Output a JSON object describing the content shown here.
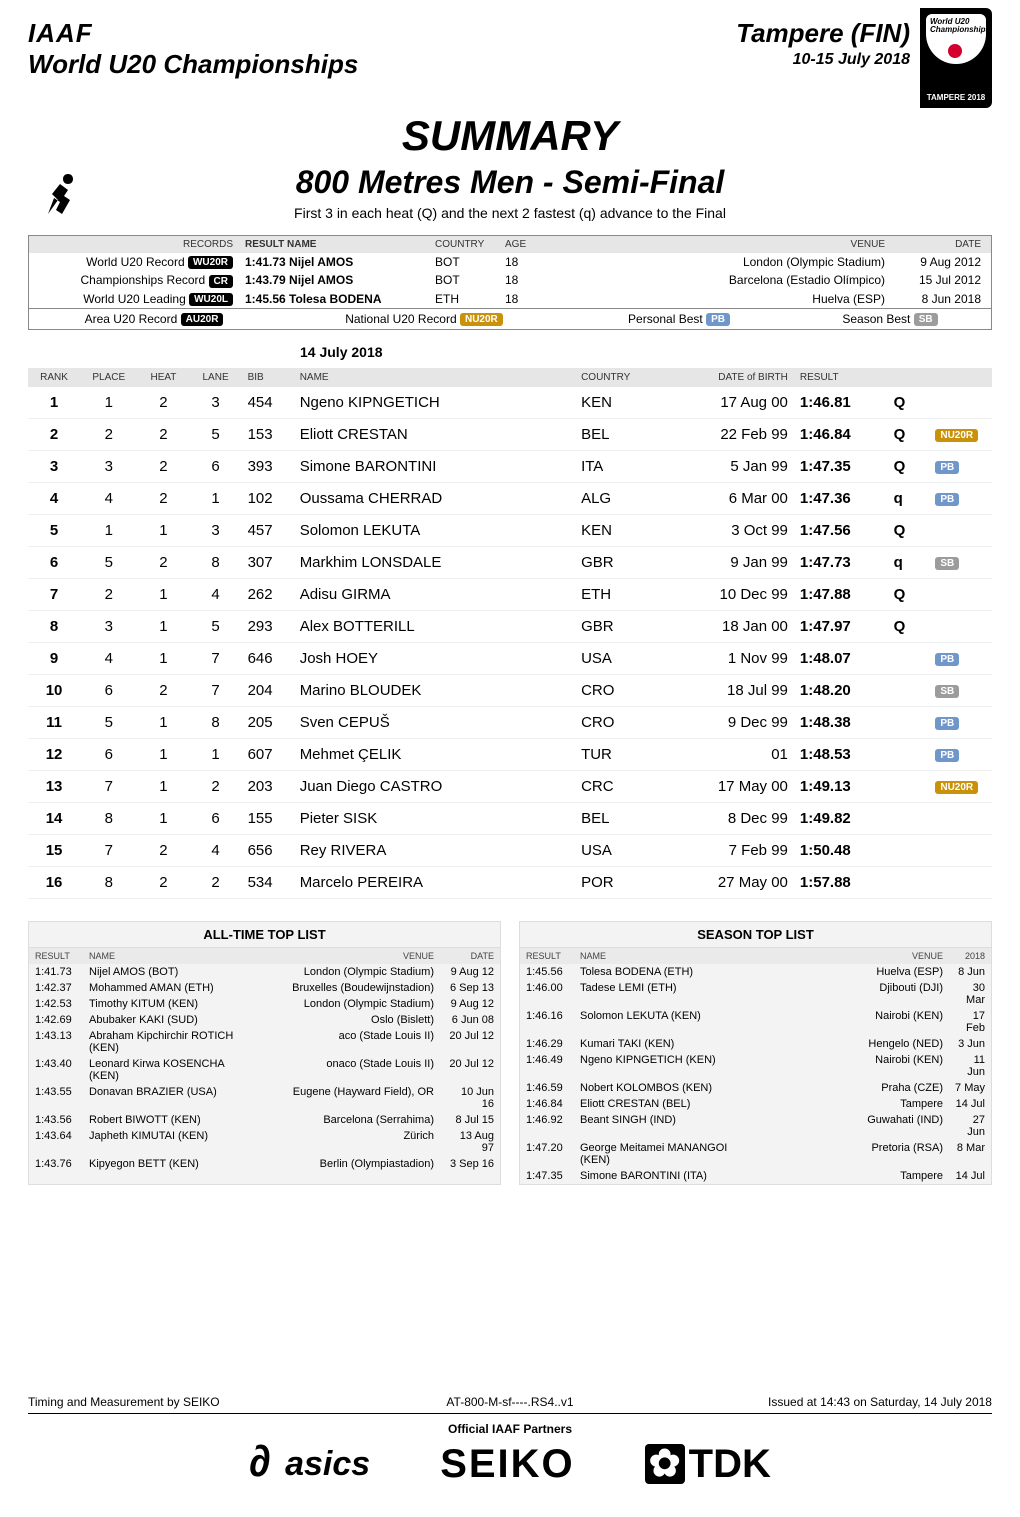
{
  "colors": {
    "badge_rec": "#000000",
    "badge_nu": "#c9920a",
    "badge_pb": "#7097c9",
    "badge_sb": "#9c9c9c",
    "header_grey": "#e6e6e6",
    "list_bg": "#f3f3f3"
  },
  "header": {
    "federation": "IAAF",
    "championship": "World U20 Championships",
    "location": "Tampere (FIN)",
    "dates": "10-15 July 2018",
    "logo_small1": "World U20",
    "logo_small2": "Championships",
    "logo_footer": "TAMPERE 2018"
  },
  "title": {
    "summary": "SUMMARY",
    "event": "800 Metres Men - Semi-Final",
    "sub": "First 3 in each heat (Q) and the next 2 fastest (q) advance to the Final"
  },
  "records_hdr": {
    "c1": "RECORDS",
    "c2": "RESULT  NAME",
    "c3": "COUNTRY",
    "c4": "AGE",
    "c5": "VENUE",
    "c6": "DATE"
  },
  "records": [
    {
      "label": "World U20 Record",
      "badge": "WU20R",
      "result": "1:41.73  Nijel AMOS",
      "country": "BOT",
      "age": "18",
      "venue": "London (Olympic Stadium)",
      "date": "9 Aug 2012"
    },
    {
      "label": "Championships Record",
      "badge": "CR",
      "result": "1:43.79  Nijel AMOS",
      "country": "BOT",
      "age": "18",
      "venue": "Barcelona (Estadio Olímpico)",
      "date": "15 Jul 2012"
    },
    {
      "label": "World U20 Leading",
      "badge": "WU20L",
      "result": "1:45.56  Tolesa BODENA",
      "country": "ETH",
      "age": "18",
      "venue": "Huelva (ESP)",
      "date": "8 Jun 2018"
    }
  ],
  "records_foot": {
    "c1": "Area U20 Record",
    "c1b": "AU20R",
    "c2": "National U20 Record",
    "c2b": "NU20R",
    "c3": "Personal Best",
    "c3b": "PB",
    "c4": "Season Best",
    "c4b": "SB"
  },
  "date_label": "14 July  2018",
  "results_hdr": {
    "rank": "RANK",
    "place": "PLACE",
    "heat": "HEAT",
    "lane": "LANE",
    "bib": "BIB",
    "name": "NAME",
    "country": "COUNTRY",
    "dob": "DATE of BIRTH",
    "result": "RESULT"
  },
  "results": [
    {
      "rank": "1",
      "place": "1",
      "heat": "2",
      "lane": "3",
      "bib": "454",
      "name": "Ngeno  KIPNGETICH",
      "ctry": "KEN",
      "dob": "17 Aug 00",
      "res": "1:46.81",
      "q": "Q",
      "badge": ""
    },
    {
      "rank": "2",
      "place": "2",
      "heat": "2",
      "lane": "5",
      "bib": "153",
      "name": "Eliott  CRESTAN",
      "ctry": "BEL",
      "dob": "22 Feb 99",
      "res": "1:46.84",
      "q": "Q",
      "badge": "NU20R"
    },
    {
      "rank": "3",
      "place": "3",
      "heat": "2",
      "lane": "6",
      "bib": "393",
      "name": "Simone  BARONTINI",
      "ctry": "ITA",
      "dob": "5 Jan 99",
      "res": "1:47.35",
      "q": "Q",
      "badge": "PB"
    },
    {
      "rank": "4",
      "place": "4",
      "heat": "2",
      "lane": "1",
      "bib": "102",
      "name": "Oussama  CHERRAD",
      "ctry": "ALG",
      "dob": "6 Mar 00",
      "res": "1:47.36",
      "q": "q",
      "badge": "PB"
    },
    {
      "rank": "5",
      "place": "1",
      "heat": "1",
      "lane": "3",
      "bib": "457",
      "name": "Solomon  LEKUTA",
      "ctry": "KEN",
      "dob": "3 Oct 99",
      "res": "1:47.56",
      "q": "Q",
      "badge": ""
    },
    {
      "rank": "6",
      "place": "5",
      "heat": "2",
      "lane": "8",
      "bib": "307",
      "name": "Markhim  LONSDALE",
      "ctry": "GBR",
      "dob": "9 Jan 99",
      "res": "1:47.73",
      "q": "q",
      "badge": "SB"
    },
    {
      "rank": "7",
      "place": "2",
      "heat": "1",
      "lane": "4",
      "bib": "262",
      "name": "Adisu  GIRMA",
      "ctry": "ETH",
      "dob": "10 Dec 99",
      "res": "1:47.88",
      "q": "Q",
      "badge": ""
    },
    {
      "rank": "8",
      "place": "3",
      "heat": "1",
      "lane": "5",
      "bib": "293",
      "name": "Alex  BOTTERILL",
      "ctry": "GBR",
      "dob": "18 Jan 00",
      "res": "1:47.97",
      "q": "Q",
      "badge": ""
    },
    {
      "rank": "9",
      "place": "4",
      "heat": "1",
      "lane": "7",
      "bib": "646",
      "name": "Josh  HOEY",
      "ctry": "USA",
      "dob": "1 Nov 99",
      "res": "1:48.07",
      "q": "",
      "badge": "PB"
    },
    {
      "rank": "10",
      "place": "6",
      "heat": "2",
      "lane": "7",
      "bib": "204",
      "name": "Marino  BLOUDEK",
      "ctry": "CRO",
      "dob": "18 Jul 99",
      "res": "1:48.20",
      "q": "",
      "badge": "SB"
    },
    {
      "rank": "11",
      "place": "5",
      "heat": "1",
      "lane": "8",
      "bib": "205",
      "name": "Sven  CEPUŠ",
      "ctry": "CRO",
      "dob": "9 Dec 99",
      "res": "1:48.38",
      "q": "",
      "badge": "PB"
    },
    {
      "rank": "12",
      "place": "6",
      "heat": "1",
      "lane": "1",
      "bib": "607",
      "name": "Mehmet  ÇELIK",
      "ctry": "TUR",
      "dob": "01",
      "res": "1:48.53",
      "q": "",
      "badge": "PB"
    },
    {
      "rank": "13",
      "place": "7",
      "heat": "1",
      "lane": "2",
      "bib": "203",
      "name": "Juan Diego  CASTRO",
      "ctry": "CRC",
      "dob": "17 May 00",
      "res": "1:49.13",
      "q": "",
      "badge": "NU20R"
    },
    {
      "rank": "14",
      "place": "8",
      "heat": "1",
      "lane": "6",
      "bib": "155",
      "name": "Pieter  SISK",
      "ctry": "BEL",
      "dob": "8 Dec 99",
      "res": "1:49.82",
      "q": "",
      "badge": ""
    },
    {
      "rank": "15",
      "place": "7",
      "heat": "2",
      "lane": "4",
      "bib": "656",
      "name": "Rey  RIVERA",
      "ctry": "USA",
      "dob": "7 Feb 99",
      "res": "1:50.48",
      "q": "",
      "badge": ""
    },
    {
      "rank": "16",
      "place": "8",
      "heat": "2",
      "lane": "2",
      "bib": "534",
      "name": "Marcelo  PEREIRA",
      "ctry": "POR",
      "dob": "27 May 00",
      "res": "1:57.88",
      "q": "",
      "badge": ""
    }
  ],
  "all_time": {
    "title": "ALL-TIME TOP LIST",
    "hdr": {
      "res": "RESULT",
      "name": "NAME",
      "venue": "VENUE",
      "date": "DATE"
    },
    "rows": [
      {
        "res": "1:41.73",
        "name": "Nijel AMOS (BOT)",
        "venue": "London (Olympic Stadium)",
        "date": "9 Aug 12"
      },
      {
        "res": "1:42.37",
        "name": "Mohammed AMAN (ETH)",
        "venue": "Bruxelles (Boudewijnstadion)",
        "date": "6 Sep 13"
      },
      {
        "res": "1:42.53",
        "name": "Timothy KITUM (KEN)",
        "venue": "London (Olympic Stadium)",
        "date": "9 Aug 12"
      },
      {
        "res": "1:42.69",
        "name": "Abubaker KAKI (SUD)",
        "venue": "Oslo (Bislett)",
        "date": "6 Jun 08"
      },
      {
        "res": "1:43.13",
        "name": "Abraham Kipchirchir ROTICH (KEN)",
        "venue": "aco (Stade Louis II)",
        "date": "20 Jul 12"
      },
      {
        "res": "1:43.40",
        "name": "Leonard Kirwa KOSENCHA (KEN)",
        "venue": "onaco (Stade Louis II)",
        "date": "20 Jul 12"
      },
      {
        "res": "1:43.55",
        "name": "Donavan BRAZIER (USA)",
        "venue": "Eugene (Hayward Field), OR",
        "date": "10 Jun 16"
      },
      {
        "res": "1:43.56",
        "name": "Robert BIWOTT (KEN)",
        "venue": "Barcelona (Serrahima)",
        "date": "8 Jul 15"
      },
      {
        "res": "1:43.64",
        "name": "Japheth KIMUTAI (KEN)",
        "venue": "Zürich",
        "date": "13 Aug 97"
      },
      {
        "res": "1:43.76",
        "name": "Kipyegon BETT (KEN)",
        "venue": "Berlin (Olympiastadion)",
        "date": "3 Sep 16"
      }
    ]
  },
  "season": {
    "title": "SEASON TOP LIST",
    "hdr": {
      "res": "RESULT",
      "name": "NAME",
      "venue": "VENUE",
      "year": "2018"
    },
    "rows": [
      {
        "res": "1:45.56",
        "name": "Tolesa BODENA (ETH)",
        "venue": "Huelva (ESP)",
        "date": "8 Jun"
      },
      {
        "res": "1:46.00",
        "name": "Tadese LEMI (ETH)",
        "venue": "Djibouti (DJI)",
        "date": "30 Mar"
      },
      {
        "res": "1:46.16",
        "name": "Solomon LEKUTA (KEN)",
        "venue": "Nairobi (KEN)",
        "date": "17 Feb"
      },
      {
        "res": "1:46.29",
        "name": "Kumari TAKI (KEN)",
        "venue": "Hengelo (NED)",
        "date": "3 Jun"
      },
      {
        "res": "1:46.49",
        "name": "Ngeno KIPNGETICH (KEN)",
        "venue": "Nairobi (KEN)",
        "date": "11 Jun"
      },
      {
        "res": "1:46.59",
        "name": "Nobert KOLOMBOS (KEN)",
        "venue": "Praha (CZE)",
        "date": "7 May"
      },
      {
        "res": "1:46.84",
        "name": "Eliott CRESTAN (BEL)",
        "venue": "Tampere",
        "date": "14 Jul"
      },
      {
        "res": "1:46.92",
        "name": "Beant SINGH (IND)",
        "venue": "Guwahati (IND)",
        "date": "27 Jun"
      },
      {
        "res": "1:47.20",
        "name": "George Meitamei MANANGOI (KEN)",
        "venue": "Pretoria (RSA)",
        "date": "8 Mar"
      },
      {
        "res": "1:47.35",
        "name": "Simone BARONTINI (ITA)",
        "venue": "Tampere",
        "date": "14 Jul"
      }
    ]
  },
  "footer": {
    "left": "Timing and Measurement by SEIKO",
    "center": "AT-800-M-sf----.RS4..v1",
    "right": "Issued at 14:43 on Saturday, 14 July  2018",
    "partners": "Official IAAF Partners",
    "logos": {
      "asics": "asics",
      "seiko": "SEIKO",
      "tdk": "TDK"
    }
  }
}
